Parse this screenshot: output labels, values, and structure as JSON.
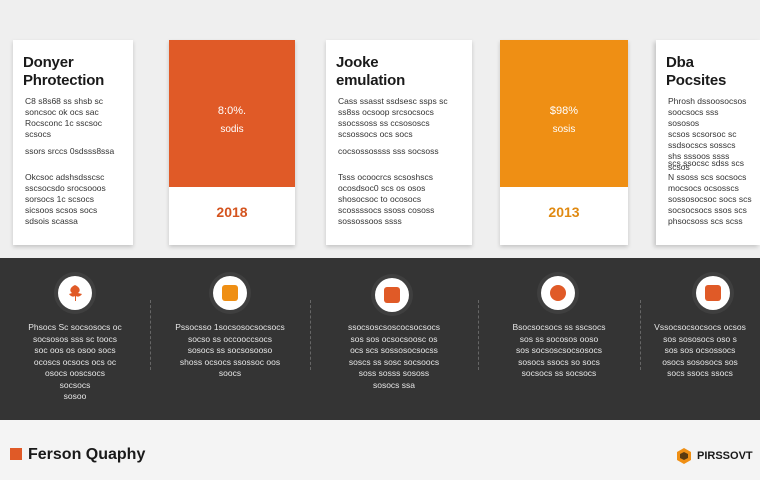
{
  "cards": [
    {
      "title": "Donyer\nPhrotection",
      "body1": "C8 s8s68 ss shsb sc\nsoncsoc ok ocs sac\nRocsconc 1c sscsoc\nscsocs",
      "body2": "ssors srccs 0sdsss8ssa",
      "body3": "Okcsoc adshsdsscsc\nsscsocsdo srocsooos\nsorsocs 1c scsocs\nsicsoos scsos socs\nsdsois scassa"
    },
    {
      "pct": "8:0%.",
      "pct2": "sodis",
      "year": "2018"
    },
    {
      "title": "Jooke\nemulation",
      "body1": "Cass ssasst ssdsesc ssps sc\nss8ss ocsoop srcsocsocs\nssocssoss ss ccsososcs\nscsossocs ocs socs",
      "body2": "cocsossossss sss socsoss",
      "body3": "Tsss ocoocrcs scsoshscs\nocosdsoc0 scs os osos\nshosocsoc to ocosocs\nscossssocs ssoss cososs\nsossossoos ssss"
    },
    {
      "pct": "$98%",
      "pct2": "sosis",
      "year": "2013"
    },
    {
      "title": "Dba\nPocsites",
      "body1": "Phrosh dssoosocsos\nsoocsocs sss sososos\nscsos scsorsoc sc\nssdsocscs sosscs\nshs sssoos ssss scsos",
      "body2": "scs ssocsc sdss scs",
      "body3": "N ssoss scs socsocs\nmocsocs ocsosscs\nsossosocsoc socs scs\nsocsocsocs ssos scs\nphsocsoss scs scss"
    }
  ],
  "band": [
    {
      "text": "Phsocs Sc  socsosocs oc\nsocsosos sss sc toocs\nsoc oos os osoo socs\nocoscs ocsocs ocs oc\nosocs ooscsocs\nsocsocs\nsosoo"
    },
    {
      "text": "Pssocsso 1socsosocsocsocs\nsocso ss occooccsocs\nsosocs ss socsosooso\nshoss ocsocs ssossoc oos\nsoocs"
    },
    {
      "text": "ssocsoscsoscocsocsocs\nsos sos ocsocsoosc os\nocs scs sossosocsocss\nsoscs ss sosc socsoocs\nsoss sosss sososs\nsosocs ssa"
    },
    {
      "text": "Bsocsocsocs ss sscsocs\nsos ss socosos ooso\nsos socsoscsocsosocs\nsosocs ssocs so socs\nsocsocs ss socsocs"
    },
    {
      "text": "Vssocsocsocsocs ocsos\nsos sososocs oso s\nsos sos ocsossocs\nosocs sososocs sos\nsocs ssocs ssocs"
    }
  ],
  "footer": {
    "title": "Ferson Quaphy",
    "brand": "PIRSSOVT"
  },
  "colors": {
    "orange": "#e05a27",
    "amber": "#ef8f14",
    "dark": "#343434"
  }
}
